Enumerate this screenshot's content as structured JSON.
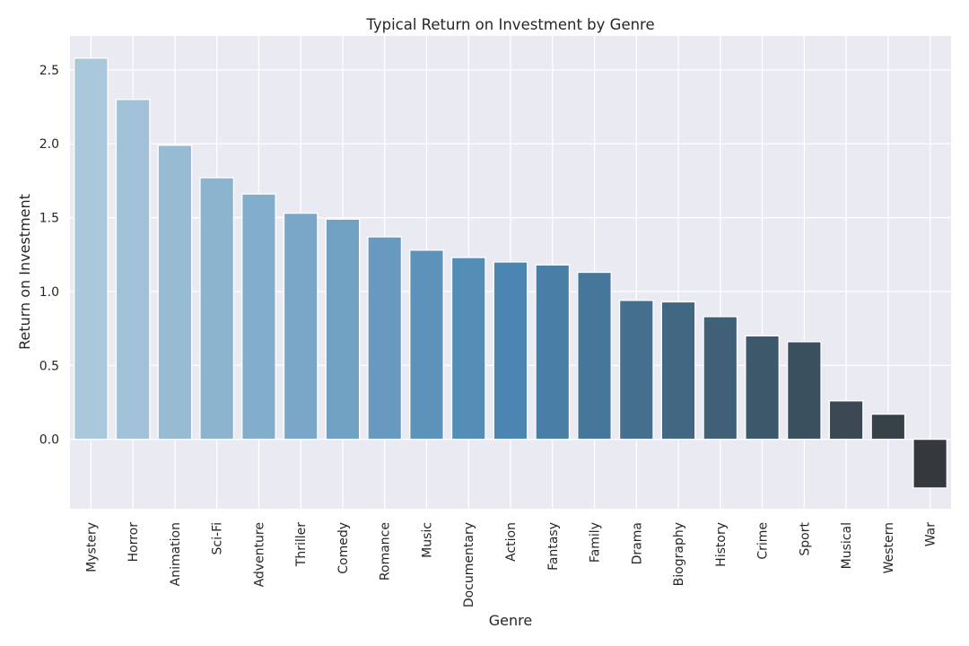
{
  "chart_data": {
    "type": "bar",
    "title": "Typical Return on Investment by Genre",
    "xlabel": "Genre",
    "ylabel": "Return on Investment",
    "categories": [
      "Mystery",
      "Horror",
      "Animation",
      "Sci-Fi",
      "Adventure",
      "Thriller",
      "Comedy",
      "Romance",
      "Music",
      "Documentary",
      "Action",
      "Fantasy",
      "Family",
      "Drama",
      "Biography",
      "History",
      "Crime",
      "Sport",
      "Musical",
      "Western",
      "War"
    ],
    "values": [
      2.58,
      2.3,
      1.99,
      1.77,
      1.66,
      1.53,
      1.49,
      1.37,
      1.28,
      1.23,
      1.2,
      1.18,
      1.13,
      0.94,
      0.93,
      0.83,
      0.7,
      0.66,
      0.26,
      0.17,
      -0.33
    ],
    "ylim": [
      -0.47,
      2.73
    ],
    "yticks": [
      0.0,
      0.5,
      1.0,
      1.5,
      2.0,
      2.5
    ],
    "ytick_labels": [
      "0.0",
      "0.5",
      "1.0",
      "1.5",
      "2.0",
      "2.5"
    ],
    "grid": true,
    "colors": {
      "plot_background": "#EAEAF2",
      "grid": "#FFFFFF",
      "palette_start": "#A9C8DC",
      "palette_mid": "#4A86B1",
      "palette_end": "#35393C"
    }
  }
}
